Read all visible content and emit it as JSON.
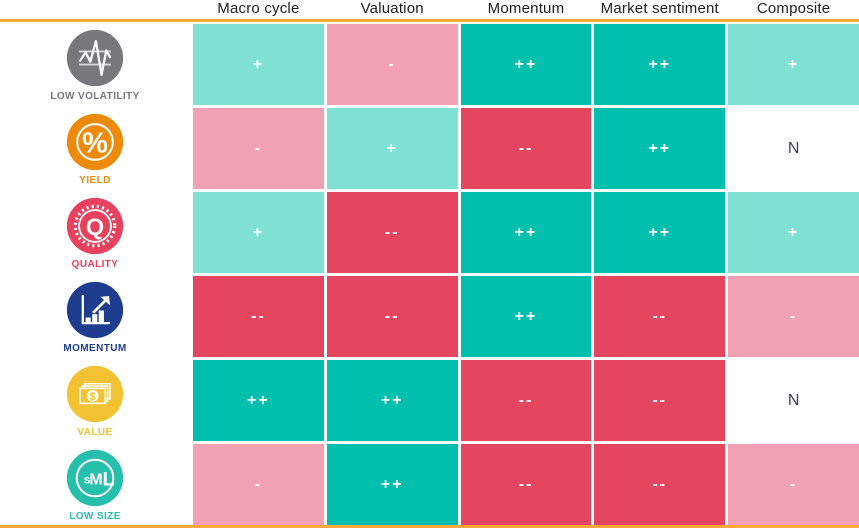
{
  "accent_color": "#F8A83C",
  "header_text_color": "#1E1E1E",
  "columns": [
    "Macro cycle",
    "Valuation",
    "Momentum",
    "Market sentiment",
    "Composite"
  ],
  "legend_colors": {
    "strong_positive": "#00BFAD",
    "positive": "#7FE0D4",
    "negative": "#F2A0B4",
    "strong_negative": "#E4455F",
    "neutral": "#FFFFFF",
    "neutral_text": "#33425B"
  },
  "rows": [
    {
      "factor": "LOW VOLATILITY",
      "icon": "low-volatility-icon",
      "color": "#77787B",
      "cells": [
        {
          "value": "+",
          "rating": "positive"
        },
        {
          "value": "-",
          "rating": "negative"
        },
        {
          "value": "++",
          "rating": "strong_positive"
        },
        {
          "value": "++",
          "rating": "strong_positive"
        },
        {
          "value": "+",
          "rating": "positive"
        }
      ]
    },
    {
      "factor": "YIELD",
      "icon": "yield-icon",
      "color": "#EE8A0A",
      "cells": [
        {
          "value": "-",
          "rating": "negative"
        },
        {
          "value": "+",
          "rating": "positive"
        },
        {
          "value": "--",
          "rating": "strong_negative"
        },
        {
          "value": "++",
          "rating": "strong_positive"
        },
        {
          "value": "N",
          "rating": "neutral"
        }
      ]
    },
    {
      "factor": "QUALITY",
      "icon": "quality-icon",
      "color": "#E8415E",
      "cells": [
        {
          "value": "+",
          "rating": "positive"
        },
        {
          "value": "--",
          "rating": "strong_negative"
        },
        {
          "value": "++",
          "rating": "strong_positive"
        },
        {
          "value": "++",
          "rating": "strong_positive"
        },
        {
          "value": "+",
          "rating": "positive"
        }
      ]
    },
    {
      "factor": "MOMENTUM",
      "icon": "momentum-icon",
      "color": "#1F3D8E",
      "cells": [
        {
          "value": "--",
          "rating": "strong_negative"
        },
        {
          "value": "--",
          "rating": "strong_negative"
        },
        {
          "value": "++",
          "rating": "strong_positive"
        },
        {
          "value": "--",
          "rating": "strong_negative"
        },
        {
          "value": "-",
          "rating": "negative"
        }
      ]
    },
    {
      "factor": "VALUE",
      "icon": "value-icon",
      "color": "#F2C233",
      "cells": [
        {
          "value": "++",
          "rating": "strong_positive"
        },
        {
          "value": "++",
          "rating": "strong_positive"
        },
        {
          "value": "--",
          "rating": "strong_negative"
        },
        {
          "value": "--",
          "rating": "strong_negative"
        },
        {
          "value": "N",
          "rating": "neutral"
        }
      ]
    },
    {
      "factor": "LOW SIZE",
      "icon": "low-size-icon",
      "color": "#25BFAC",
      "cells": [
        {
          "value": "-",
          "rating": "negative"
        },
        {
          "value": "++",
          "rating": "strong_positive"
        },
        {
          "value": "--",
          "rating": "strong_negative"
        },
        {
          "value": "--",
          "rating": "strong_negative"
        },
        {
          "value": "-",
          "rating": "negative"
        }
      ]
    }
  ],
  "chart_data": {
    "type": "heatmap",
    "title": "Factor ratings matrix",
    "columns": [
      "Macro cycle",
      "Valuation",
      "Momentum",
      "Market sentiment",
      "Composite"
    ],
    "rows": [
      "LOW VOLATILITY",
      "YIELD",
      "QUALITY",
      "MOMENTUM",
      "VALUE",
      "LOW SIZE"
    ],
    "values": [
      [
        "+",
        "-",
        "++",
        "++",
        "+"
      ],
      [
        "-",
        "+",
        "--",
        "++",
        "N"
      ],
      [
        "+",
        "--",
        "++",
        "++",
        "+"
      ],
      [
        "--",
        "--",
        "++",
        "--",
        "-"
      ],
      [
        "++",
        "++",
        "--",
        "--",
        "N"
      ],
      [
        "-",
        "++",
        "--",
        "--",
        "-"
      ]
    ],
    "scale": [
      "--",
      "-",
      "N",
      "+",
      "++"
    ],
    "legend_position": "none",
    "grid": false
  }
}
